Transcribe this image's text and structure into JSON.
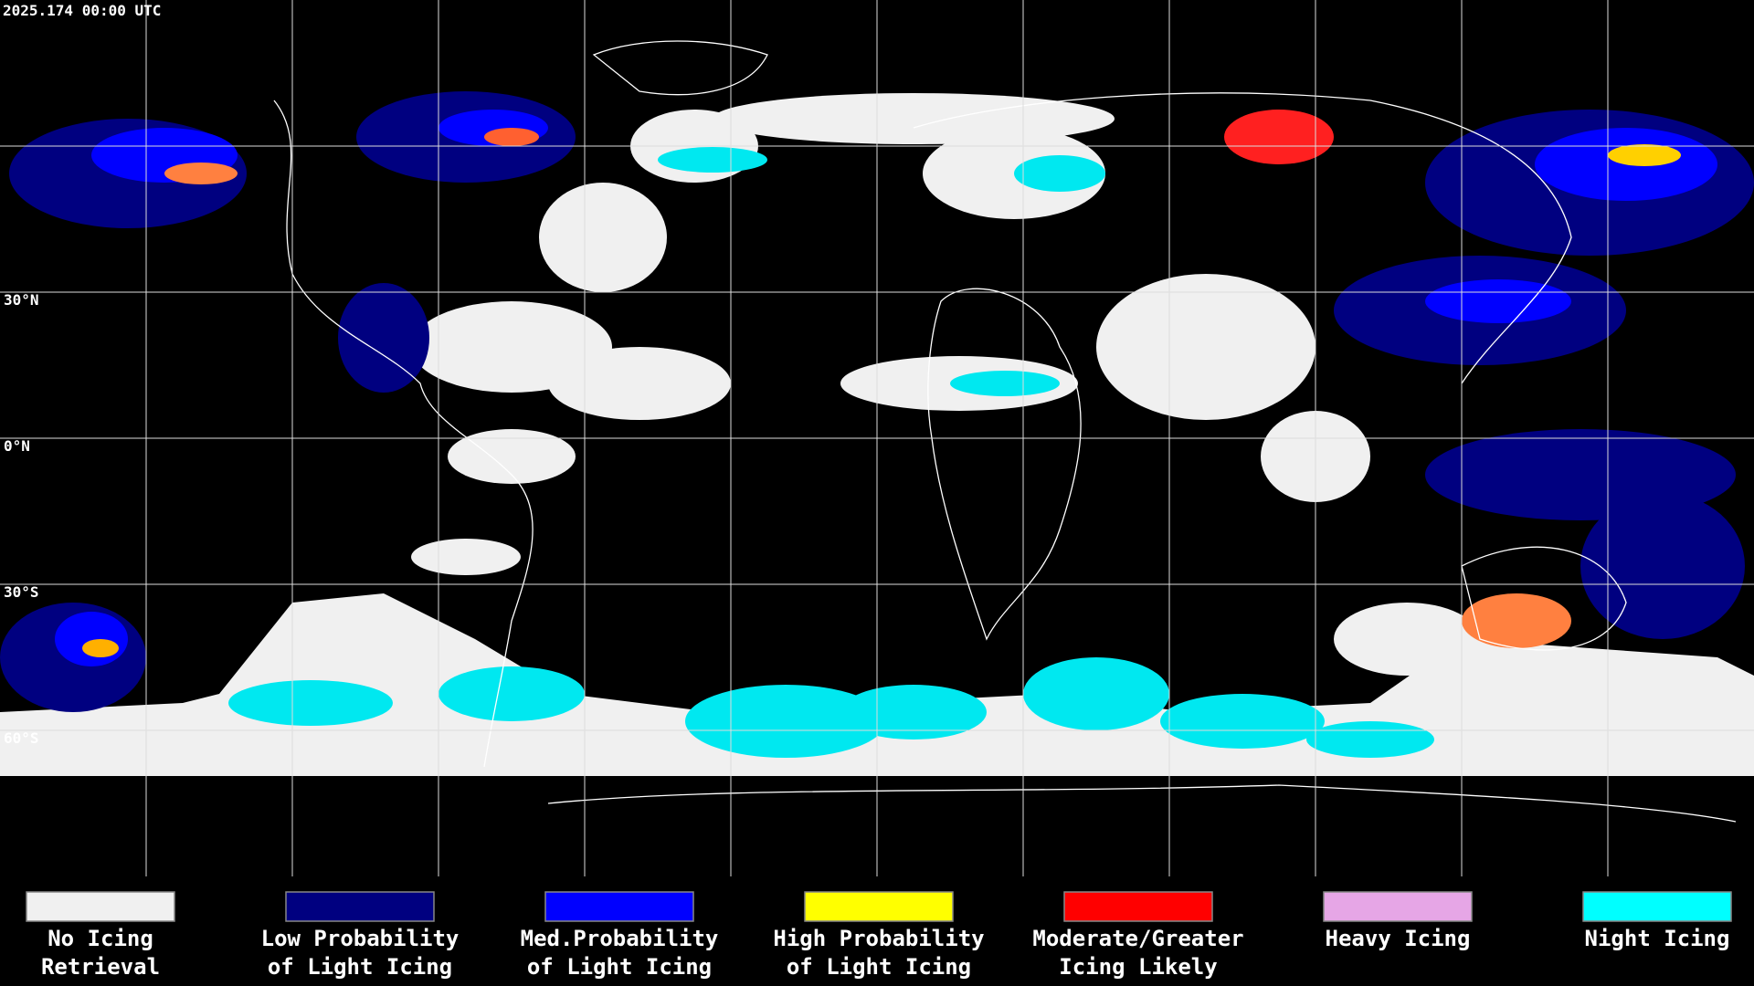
{
  "timestamp": "2025.174 00:00 UTC",
  "lat_labels": [
    "30°N",
    "0°N",
    "30°S",
    "60°S"
  ],
  "legend": [
    {
      "color": "#f0f0f0",
      "lines": [
        "No Icing",
        "Retrieval"
      ]
    },
    {
      "color": "#000080",
      "lines": [
        "Low Probability",
        "of Light Icing"
      ]
    },
    {
      "color": "#0000ff",
      "lines": [
        "Med.Probability",
        "of Light Icing"
      ]
    },
    {
      "color": "#ffff00",
      "lines": [
        "High Probability",
        "of Light Icing"
      ]
    },
    {
      "color": "#ff0000",
      "lines": [
        "Moderate/Greater",
        "Icing Likely"
      ]
    },
    {
      "color": "#e6a6e6",
      "lines": [
        "Heavy Icing",
        ""
      ]
    },
    {
      "color": "#00ffff",
      "lines": [
        "Night Icing",
        ""
      ]
    }
  ]
}
